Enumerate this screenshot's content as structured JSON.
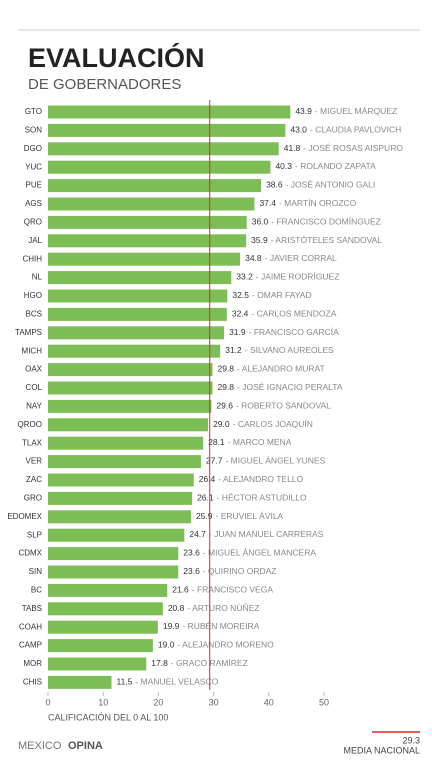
{
  "chart_data": {
    "type": "bar",
    "orientation": "horizontal",
    "title": "EVALUACIÓN",
    "subtitle": "DE GOBERNADORES",
    "x_label": "CALIFICACIÓN DEL 0 AL 100",
    "categories": [
      "GTO",
      "SON",
      "DGO",
      "YUC",
      "PUE",
      "AGS",
      "QRO",
      "JAL",
      "CHIH",
      "NL",
      "HGO",
      "BCS",
      "TAMPS",
      "MICH",
      "OAX",
      "COL",
      "NAY",
      "QROO",
      "TLAX",
      "VER",
      "ZAC",
      "GRO",
      "EDOMEX",
      "SLP",
      "CDMX",
      "SIN",
      "BC",
      "TABS",
      "COAH",
      "CAMP",
      "MOR",
      "CHIS"
    ],
    "values": [
      43.9,
      43.0,
      41.8,
      40.3,
      38.6,
      37.4,
      36.0,
      35.9,
      34.8,
      33.2,
      32.5,
      32.4,
      31.9,
      31.2,
      29.8,
      29.8,
      29.6,
      29.0,
      28.1,
      27.7,
      26.4,
      26.1,
      25.9,
      24.7,
      23.6,
      23.6,
      21.6,
      20.8,
      19.9,
      19.0,
      17.8,
      11.5
    ],
    "value_labels": [
      "43.9",
      "43.0",
      "41.8",
      "40.3",
      "38.6",
      "37.4",
      "36.0",
      "35.9",
      "34.8",
      "33.2",
      "32.5",
      "32.4",
      "31.9",
      "31.2",
      "29.8",
      "29.8",
      "29.6",
      "29.0",
      "28.1",
      "27.7",
      "26.4",
      "26.1",
      "25.9",
      "24.7",
      "23.6",
      "23.6",
      "21.6",
      "20.8",
      "19.9",
      "19.0",
      "17.8",
      "11.5"
    ],
    "names": [
      "- MIGUEL MÁRQUEZ",
      "- CLAUDIA PAVLOVICH",
      "- JOSÉ ROSAS AISPURO",
      "- ROLANDO ZAPATA",
      "- JOSÉ ANTONIO GALI",
      "- MARTÍN OROZCO",
      "- FRANCISCO DOMÍNGUEZ",
      "- ARISTÓTELES SANDOVAL",
      "- JAVIER CORRAL",
      "- JAIME RODRÍGUEZ",
      "- OMAR FAYAD",
      "- CARLOS MENDOZA",
      "- FRANCISCO GARCÍA",
      "- SILVANO AUREOLES",
      "- ALEJANDRO MURAT",
      "- JOSÉ IGNACIO PERALTA",
      "- ROBERTO SANDOVAL",
      "- CARLOS JOAQUÍN",
      "- MARCO MENA",
      "- MIGUEL ÁNGEL YUNES",
      "- ALEJANDRO TELLO",
      "- HÉCTOR ASTUDILLO",
      "- ERUVIEL ÁVILA",
      "- JUAN MANUEL CARRERAS",
      "- MIGUEL ÁNGEL MANCERA",
      "- QUIRINO ORDAZ",
      "- FRANCISCO VEGA",
      "- ARTURO NÚÑEZ",
      "- RUBÉN MOREIRA",
      "- ALEJANDRO MORENO",
      "- GRACO RAMÍREZ",
      "- MANUEL VELASCO"
    ],
    "color": "#7dbd56",
    "xlim": [
      0,
      50
    ],
    "xticks": [
      0,
      10,
      20,
      30,
      40,
      50
    ],
    "reference_line": {
      "value": 29.3,
      "label": "MEDIA NACIONAL",
      "color": "#e0262b"
    },
    "logo": {
      "part1": "MEXICO",
      "part2": "OPINA"
    }
  }
}
